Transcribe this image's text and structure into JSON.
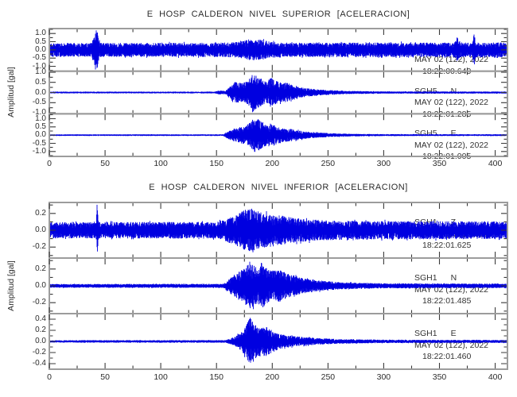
{
  "window": {
    "background": "#ffffff"
  },
  "colors": {
    "trace": "#0000e0",
    "frame": "#9c9c9c",
    "tick": "#3a3a3a",
    "text": "#2c2c2c"
  },
  "chart_data": {
    "type": "line",
    "description": "Two stacked accelerogram panels, three seismic traces each (vertical Z, north N, east E components). X axis = seconds (0-411, ticks every 50), Y axis = acceleration amplitude in gal.",
    "xlabel": "",
    "xlim": [
      0,
      411
    ],
    "x_major_ticks": [
      0,
      50,
      100,
      150,
      200,
      250,
      300,
      350,
      400
    ],
    "x_tick_labels": [
      "0",
      "50",
      "100",
      "150",
      "200",
      "250",
      "300",
      "350",
      "400"
    ],
    "x_minor_step": 25,
    "grid": false,
    "legend": "none",
    "panels": [
      {
        "title": "E HOSP CALDERON NIVEL SUPERIOR [ACELERACION]",
        "ylabel": "Amplitud [gal]",
        "traces": [
          {
            "station": "SGH5",
            "channel": "Z",
            "date_label": "MAY 02 (122), 2022",
            "time_label": "18:22:00.640",
            "ylim": 1.3,
            "ytick_step": 0.5,
            "yticks": [
              1.0,
              0.5,
              0.0,
              -0.5,
              -1.0
            ],
            "ytick_labels": [
              "1.0",
              "0.5",
              "0.0",
              "-0.5",
              "-1.0"
            ],
            "seed": 7,
            "noise_env": [
              [
                0,
                0.42
              ],
              [
                411,
                0.45
              ]
            ],
            "spikes": [
              [
                42,
                2.2,
                0.85
              ],
              [
                184,
                14,
                0.22
              ],
              [
                366,
                1.3,
                0.42
              ],
              [
                381,
                1.1,
                0.5
              ]
            ]
          },
          {
            "station": "SGH5",
            "channel": "N",
            "date_label": "MAY 02 (122), 2022",
            "time_label": "18:22:01.285",
            "ylim": 1.05,
            "ytick_step": 0.5,
            "yticks": [
              1.0,
              0.5,
              0.0,
              -0.5,
              -1.0
            ],
            "ytick_labels": [
              "1.0",
              "0.5",
              "0.0",
              "-0.5",
              "-1.0"
            ],
            "seed": 13,
            "noise_env": [
              [
                0,
                0.045
              ],
              [
                148,
                0.045
              ],
              [
                153,
                0.1
              ],
              [
                158,
                0.08
              ],
              [
                162,
                0.3
              ],
              [
                166,
                0.55
              ],
              [
                171,
                0.45
              ],
              [
                177,
                0.55
              ],
              [
                183,
                0.95
              ],
              [
                189,
                0.75
              ],
              [
                194,
                0.55
              ],
              [
                199,
                0.72
              ],
              [
                206,
                0.5
              ],
              [
                213,
                0.48
              ],
              [
                221,
                0.3
              ],
              [
                232,
                0.2
              ],
              [
                248,
                0.13
              ],
              [
                266,
                0.08
              ],
              [
                300,
                0.055
              ],
              [
                411,
                0.05
              ]
            ],
            "spikes": []
          },
          {
            "station": "SGH5",
            "channel": "E",
            "date_label": "MAY 02 (122), 2022",
            "time_label": "18:22:01.005",
            "ylim": 1.3,
            "ytick_step": 0.5,
            "yticks": [
              1.0,
              0.5,
              0.0,
              -0.5,
              -1.0
            ],
            "ytick_labels": [
              "1.0",
              "0.5",
              "0.0",
              "-0.5",
              "-1.0"
            ],
            "seed": 21,
            "noise_env": [
              [
                0,
                0.05
              ],
              [
                156,
                0.05
              ],
              [
                162,
                0.3
              ],
              [
                168,
                0.45
              ],
              [
                175,
                0.55
              ],
              [
                181,
                0.8
              ],
              [
                185,
                1.1
              ],
              [
                190,
                0.85
              ],
              [
                196,
                0.6
              ],
              [
                202,
                0.62
              ],
              [
                210,
                0.42
              ],
              [
                220,
                0.35
              ],
              [
                232,
                0.2
              ],
              [
                250,
                0.12
              ],
              [
                270,
                0.08
              ],
              [
                300,
                0.06
              ],
              [
                411,
                0.055
              ]
            ],
            "spikes": []
          }
        ]
      },
      {
        "title": "E HOSP CALDERON NIVEL INFERIOR [ACELERACION]",
        "ylabel": "Amplitud [gal]",
        "traces": [
          {
            "station": "SGH1",
            "channel": "Z",
            "date_label": "MAY 02 (122), 2022",
            "time_label": "18:22:01.625",
            "ylim": 0.33,
            "ytick_step": 0.2,
            "yticks": [
              0.2,
              0.0,
              -0.2
            ],
            "ytick_labels": [
              "0.2",
              "0.0",
              "-0.2"
            ],
            "seed": 5,
            "noise_env": [
              [
                0,
                0.095
              ],
              [
                150,
                0.1
              ],
              [
                158,
                0.13
              ],
              [
                165,
                0.18
              ],
              [
                172,
                0.22
              ],
              [
                180,
                0.27
              ],
              [
                188,
                0.22
              ],
              [
                198,
                0.19
              ],
              [
                210,
                0.17
              ],
              [
                225,
                0.14
              ],
              [
                245,
                0.12
              ],
              [
                280,
                0.11
              ],
              [
                411,
                0.105
              ]
            ],
            "spikes": [
              [
                43,
                0.6,
                0.23
              ]
            ]
          },
          {
            "station": "SGH1",
            "channel": "N",
            "date_label": "MAY 02 (122), 2022",
            "time_label": "18:22:01.485",
            "ylim": 0.33,
            "ytick_step": 0.2,
            "yticks": [
              0.2,
              0.0,
              -0.2
            ],
            "ytick_labels": [
              "0.2",
              "0.0",
              "-0.2"
            ],
            "seed": 9,
            "noise_env": [
              [
                0,
                0.022
              ],
              [
                156,
                0.024
              ],
              [
                162,
                0.09
              ],
              [
                168,
                0.15
              ],
              [
                174,
                0.2
              ],
              [
                180,
                0.27
              ],
              [
                186,
                0.22
              ],
              [
                192,
                0.25
              ],
              [
                199,
                0.18
              ],
              [
                207,
                0.19
              ],
              [
                216,
                0.13
              ],
              [
                228,
                0.09
              ],
              [
                245,
                0.06
              ],
              [
                265,
                0.04
              ],
              [
                300,
                0.03
              ],
              [
                411,
                0.026
              ]
            ],
            "spikes": []
          },
          {
            "station": "SGH1",
            "channel": "E",
            "date_label": "MAY 02 (122), 2022",
            "time_label": "18:22:01.460",
            "ylim": 0.5,
            "ytick_step": 0.2,
            "yticks": [
              0.4,
              0.2,
              0.0,
              -0.2,
              -0.4
            ],
            "ytick_labels": [
              "0.4",
              "0.2",
              "0.0",
              "-0.2",
              "-0.4"
            ],
            "seed": 17,
            "noise_env": [
              [
                0,
                0.022
              ],
              [
                158,
                0.024
              ],
              [
                166,
                0.08
              ],
              [
                172,
                0.16
              ],
              [
                177,
                0.3
              ],
              [
                180,
                0.46
              ],
              [
                184,
                0.34
              ],
              [
                189,
                0.25
              ],
              [
                195,
                0.27
              ],
              [
                202,
                0.17
              ],
              [
                210,
                0.12
              ],
              [
                222,
                0.09
              ],
              [
                240,
                0.06
              ],
              [
                262,
                0.04
              ],
              [
                300,
                0.03
              ],
              [
                411,
                0.026
              ]
            ],
            "spikes": []
          }
        ]
      }
    ]
  }
}
